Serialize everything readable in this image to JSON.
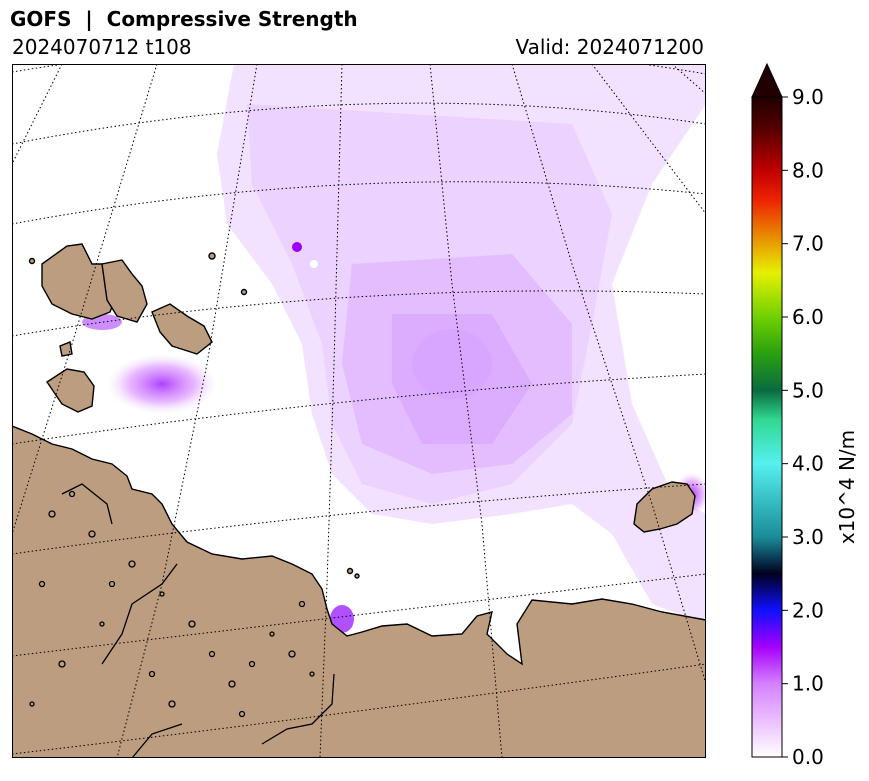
{
  "header": {
    "title": "GOFS  |  Compressive Strength",
    "run": "2024070712 t108",
    "valid": "Valid: 2024071200"
  },
  "map": {
    "land_color": "#bd9d80",
    "ocean_color": "#ffffff",
    "coastline_color": "#000000",
    "graticule_style": "dotted"
  },
  "colorbar": {
    "label": "x10^4 N/m",
    "min": 0.0,
    "max": 9.0,
    "extend": "max",
    "ticks": [
      {
        "value": 0.0,
        "label": "0.0"
      },
      {
        "value": 1.0,
        "label": "1.0"
      },
      {
        "value": 2.0,
        "label": "2.0"
      },
      {
        "value": 3.0,
        "label": "3.0"
      },
      {
        "value": 4.0,
        "label": "4.0"
      },
      {
        "value": 5.0,
        "label": "5.0"
      },
      {
        "value": 6.0,
        "label": "6.0"
      },
      {
        "value": 7.0,
        "label": "7.0"
      },
      {
        "value": 8.0,
        "label": "8.0"
      },
      {
        "value": 9.0,
        "label": "9.0"
      }
    ],
    "color_stops": [
      {
        "value": 0.0,
        "color": "#ffffff"
      },
      {
        "value": 1.0,
        "color": "#d580ff"
      },
      {
        "value": 1.5,
        "color": "#a500ff"
      },
      {
        "value": 2.0,
        "color": "#1010ff"
      },
      {
        "value": 2.5,
        "color": "#000020"
      },
      {
        "value": 3.0,
        "color": "#1a8c99"
      },
      {
        "value": 4.0,
        "color": "#55f0f0"
      },
      {
        "value": 4.6,
        "color": "#30d890"
      },
      {
        "value": 5.0,
        "color": "#0a6a40"
      },
      {
        "value": 5.5,
        "color": "#2aa010"
      },
      {
        "value": 6.0,
        "color": "#70d000"
      },
      {
        "value": 6.6,
        "color": "#e6f000"
      },
      {
        "value": 7.0,
        "color": "#e8a000"
      },
      {
        "value": 7.6,
        "color": "#ee2200"
      },
      {
        "value": 8.0,
        "color": "#c00000"
      },
      {
        "value": 8.6,
        "color": "#500000"
      },
      {
        "value": 9.0,
        "color": "#200000"
      }
    ]
  }
}
